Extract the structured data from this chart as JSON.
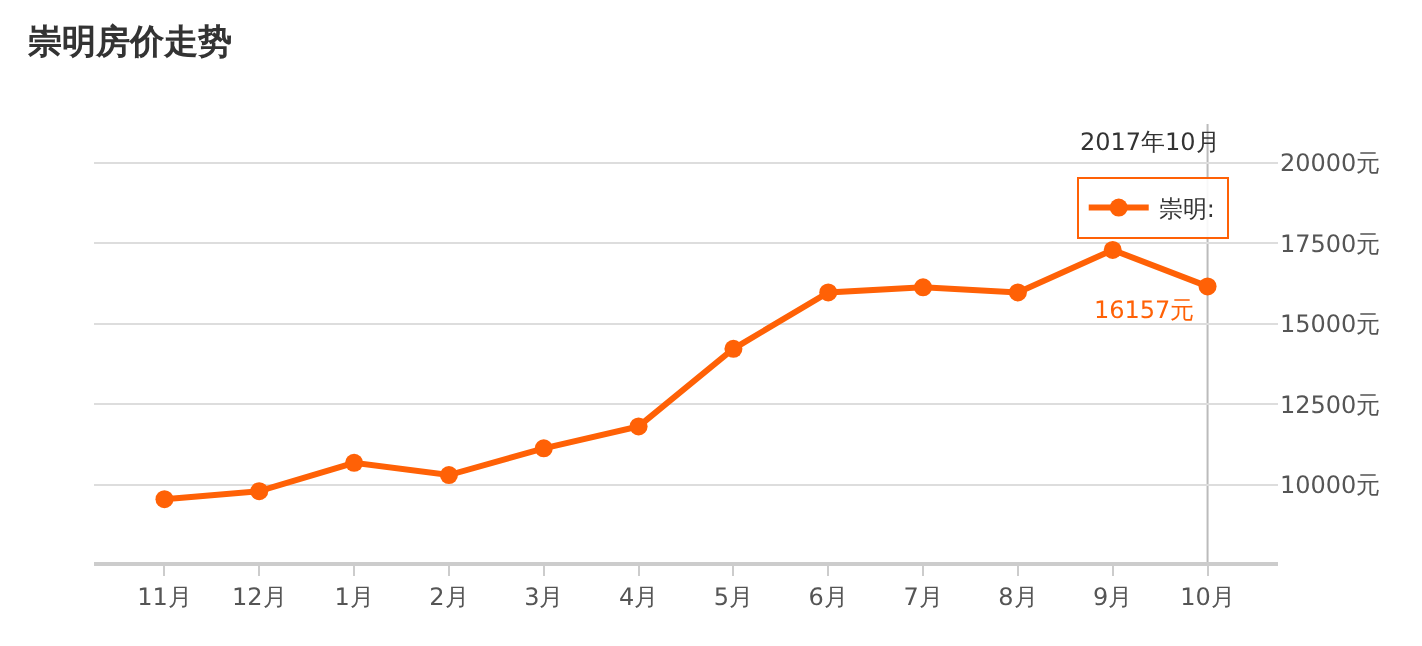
{
  "chart_data": {
    "type": "line",
    "title": "崇明房价走势",
    "categories": [
      "11月",
      "12月",
      "1月",
      "2月",
      "3月",
      "4月",
      "5月",
      "6月",
      "7月",
      "8月",
      "9月",
      "10月"
    ],
    "series": [
      {
        "name": "崇明:",
        "color": "#ff6106",
        "values": [
          9550,
          9800,
          10680,
          10300,
          11130,
          11810,
          14220,
          15970,
          16130,
          15970,
          17290,
          16157
        ],
        "value_labels": [
          null,
          null,
          null,
          null,
          null,
          null,
          null,
          null,
          null,
          null,
          null,
          "16157元"
        ]
      }
    ],
    "ylim": [
      7600,
      21200
    ],
    "yticks": [
      {
        "value": 10000,
        "label": "10000元"
      },
      {
        "value": 12500,
        "label": "12500元"
      },
      {
        "value": 15000,
        "label": "15000元"
      },
      {
        "value": 17500,
        "label": "17500元"
      },
      {
        "value": 20000,
        "label": "20000元"
      }
    ],
    "grid": "y",
    "legend": "top right",
    "marker": "circle",
    "line_style": "solid",
    "ref_lines": [
      {
        "axis": "x",
        "value": "10月",
        "color": "#bbbbbb"
      }
    ],
    "annotations": [
      "2017年10月"
    ]
  }
}
